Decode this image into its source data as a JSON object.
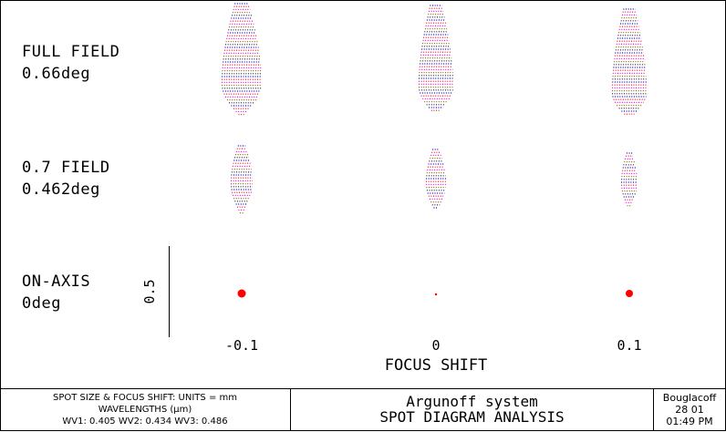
{
  "chart_data": {
    "type": "spot-diagram",
    "title": "SPOT DIAGRAM ANALYSIS",
    "system_name": "Argunoff system",
    "xlabel": "FOCUS SHIFT",
    "x_ticks": [
      "-0.1",
      "0",
      "0.1"
    ],
    "focus_shifts": [
      -0.1,
      0,
      0.1
    ],
    "scale_bar_label": "0.5",
    "fields": [
      {
        "label": "FULL FIELD",
        "angle": "0.66deg",
        "angle_value": 0.66
      },
      {
        "label": "0.7 FIELD",
        "angle": "0.462deg",
        "angle_value": 0.462
      },
      {
        "label": "ON-AXIS",
        "angle": "0deg",
        "angle_value": 0
      }
    ],
    "wavelength_colors": [
      "#0000ff",
      "#ff0000",
      "#ff00ff",
      "#9a6b00",
      "#1a1a1a"
    ]
  },
  "footer": {
    "units_line": "SPOT SIZE & FOCUS SHIFT: UNITS = mm",
    "wavelengths_header": "WAVELENGTHS (μm)",
    "wavelengths": "WV1: 0.405 WV2: 0.434 WV3: 0.486",
    "author": "Bouglacoff",
    "date": "28  01",
    "time": "01:49 PM"
  }
}
